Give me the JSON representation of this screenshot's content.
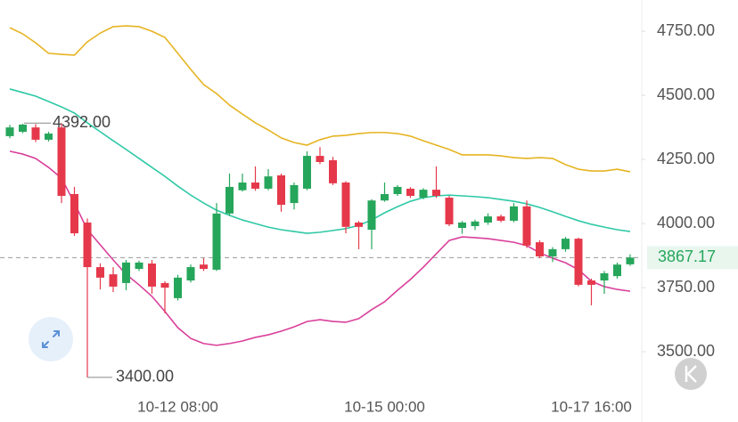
{
  "chart_data": {
    "type": "candlestick",
    "categories": [
      null,
      null,
      null,
      null,
      null,
      null,
      null,
      null,
      null,
      null,
      null,
      null,
      null,
      "10-12 08:00",
      null,
      null,
      null,
      null,
      null,
      null,
      null,
      null,
      null,
      null,
      null,
      null,
      null,
      null,
      null,
      "10-15 00:00",
      null,
      null,
      null,
      null,
      null,
      null,
      null,
      null,
      null,
      null,
      null,
      null,
      null,
      null,
      null,
      "10-17 16:00",
      null,
      null,
      null
    ],
    "open": [
      4341,
      4358,
      4375,
      4327,
      4375,
      4115,
      4004,
      3830,
      3802,
      3768,
      3823,
      3844,
      3768,
      3709,
      3778,
      3840,
      3820,
      4039,
      4130,
      4160,
      4136,
      4188,
      4080,
      4136,
      4264,
      4247,
      4160,
      4004,
      3976,
      4090,
      4115,
      4136,
      4101,
      4132,
      4101,
      3983,
      3990,
      4004,
      4028,
      4011,
      4067,
      3927,
      3872,
      3900,
      3941,
      3778,
      3778,
      3795,
      3841
    ],
    "high": [
      4385,
      4389,
      4388,
      4358,
      4392,
      4143,
      4020,
      3845,
      3830,
      3858,
      3855,
      3858,
      3775,
      3800,
      3840,
      3865,
      4080,
      4195,
      4195,
      4223,
      4212,
      4195,
      4160,
      4282,
      4298,
      4260,
      4165,
      4010,
      4095,
      4160,
      4150,
      4142,
      4138,
      4223,
      4108,
      4010,
      4015,
      4040,
      4035,
      4080,
      4090,
      3935,
      3908,
      3948,
      3945,
      3785,
      3815,
      3848,
      3880
    ],
    "low": [
      4333,
      4352,
      4318,
      4320,
      4080,
      3952,
      3400,
      3743,
      3733,
      3740,
      3815,
      3726,
      3650,
      3700,
      3770,
      3815,
      3815,
      4030,
      4125,
      4128,
      4130,
      4046,
      4055,
      4130,
      4232,
      4150,
      3962,
      3900,
      3900,
      4085,
      4108,
      4100,
      4095,
      4100,
      3990,
      3960,
      3975,
      3995,
      4005,
      4005,
      3905,
      3865,
      3850,
      3890,
      3755,
      3681,
      3726,
      3785,
      3835
    ],
    "close": [
      4375,
      4386,
      4327,
      4351,
      4108,
      3962,
      3830,
      3789,
      3754,
      3848,
      3848,
      3754,
      3750,
      3789,
      3830,
      3823,
      4039,
      4143,
      4160,
      4136,
      4184,
      4073,
      4150,
      4264,
      4240,
      4157,
      3987,
      3987,
      4090,
      4115,
      4143,
      4108,
      4132,
      4108,
      3997,
      4004,
      4008,
      4028,
      4011,
      4067,
      3914,
      3872,
      3900,
      3941,
      3761,
      3761,
      3806,
      3840,
      3867.17
    ],
    "up_color": "#26a65b",
    "down_color": "#e5394b",
    "lines": [
      {
        "color": "#e6b422",
        "values": [
          4764,
          4740,
          4705,
          4664,
          4660,
          4657,
          4709,
          4743,
          4768,
          4771,
          4768,
          4750,
          4726,
          4664,
          4601,
          4542,
          4507,
          4462,
          4427,
          4393,
          4365,
          4334,
          4316,
          4306,
          4327,
          4341,
          4344,
          4351,
          4355,
          4355,
          4351,
          4341,
          4323,
          4306,
          4289,
          4268,
          4268,
          4268,
          4264,
          4257,
          4254,
          4257,
          4254,
          4230,
          4212,
          4205,
          4205,
          4212,
          4202
        ]
      },
      {
        "color": "#2ec9a6",
        "values": [
          4525,
          4511,
          4497,
          4476,
          4455,
          4431,
          4393,
          4358,
          4323,
          4289,
          4254,
          4219,
          4184,
          4146,
          4111,
          4080,
          4052,
          4032,
          4014,
          4000,
          3986,
          3976,
          3969,
          3962,
          3966,
          3973,
          3980,
          3993,
          4014,
          4042,
          4066,
          4087,
          4101,
          4108,
          4111,
          4108,
          4105,
          4101,
          4094,
          4087,
          4077,
          4063,
          4046,
          4028,
          4011,
          3997,
          3986,
          3976,
          3969
        ]
      },
      {
        "color": "#d9409b",
        "values": [
          4282,
          4271,
          4254,
          4219,
          4177,
          4080,
          3976,
          3917,
          3858,
          3802,
          3761,
          3716,
          3657,
          3594,
          3552,
          3532,
          3525,
          3532,
          3542,
          3556,
          3566,
          3580,
          3597,
          3618,
          3625,
          3618,
          3615,
          3629,
          3664,
          3695,
          3740,
          3782,
          3830,
          3882,
          3934,
          3948,
          3945,
          3941,
          3934,
          3927,
          3914,
          3886,
          3865,
          3847,
          3820,
          3775,
          3754,
          3743,
          3736
        ]
      }
    ],
    "ylim": [
      3344,
      4872
    ],
    "yticks": [
      {
        "value": 3500,
        "label": "3500.00"
      },
      {
        "value": 3750,
        "label": "3750.00"
      },
      {
        "value": 4000,
        "label": "4000.00"
      },
      {
        "value": 4250,
        "label": "4250.00"
      },
      {
        "value": 4500,
        "label": "4500.00"
      },
      {
        "value": 4750,
        "label": "4750.00"
      }
    ],
    "max_label": "4392.00",
    "min_label": "3400.00",
    "last_price_label": "3867.17",
    "last_price_color": "#26a65b"
  }
}
